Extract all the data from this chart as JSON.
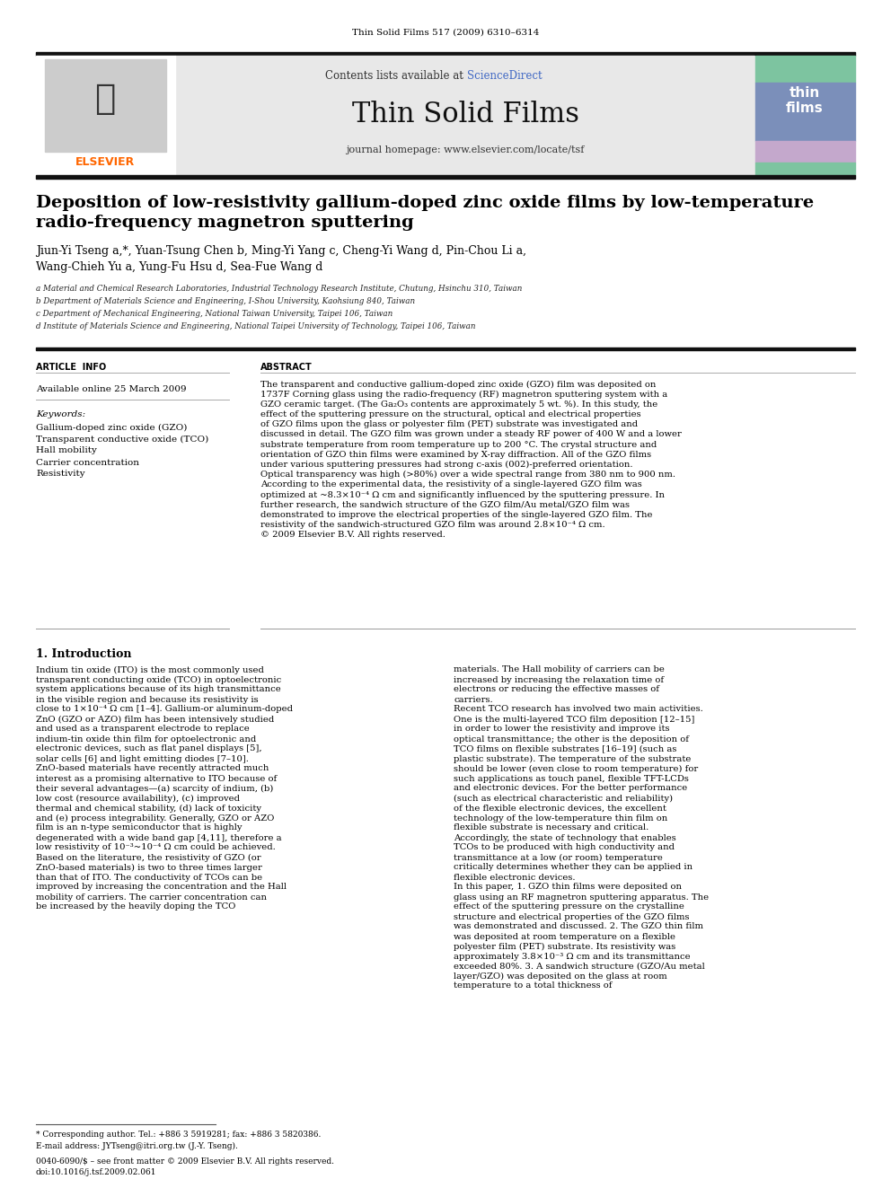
{
  "journal_header": "Thin Solid Films 517 (2009) 6310–6314",
  "contents_line": "Contents lists available at ScienceDirect",
  "journal_name": "Thin Solid Films",
  "journal_homepage": "journal homepage: www.elsevier.com/locate/tsf",
  "title_line1": "Deposition of low-resistivity gallium-doped zinc oxide films by low-temperature",
  "title_line2": "radio-frequency magnetron sputtering",
  "authors": "Jiun-Yi Tseng a,*, Yuan-Tsung Chen b, Ming-Yi Yang c, Cheng-Yi Wang d, Pin-Chou Li a,",
  "authors2": "Wang-Chieh Yu a, Yung-Fu Hsu d, Sea-Fue Wang d",
  "affil_a": "a Material and Chemical Research Laboratories, Industrial Technology Research Institute, Chutung, Hsinchu 310, Taiwan",
  "affil_b": "b Department of Materials Science and Engineering, I-Shou University, Kaohsiung 840, Taiwan",
  "affil_c": "c Department of Mechanical Engineering, National Taiwan University, Taipei 106, Taiwan",
  "affil_d": "d Institute of Materials Science and Engineering, National Taipei University of Technology, Taipei 106, Taiwan",
  "article_info_title": "ARTICLE  INFO",
  "available_online": "Available online 25 March 2009",
  "keywords_title": "Keywords:",
  "keywords": [
    "Gallium-doped zinc oxide (GZO)",
    "Transparent conductive oxide (TCO)",
    "Hall mobility",
    "Carrier concentration",
    "Resistivity"
  ],
  "abstract_title": "ABSTRACT",
  "abstract_text": "The transparent and conductive gallium-doped zinc oxide (GZO) film was deposited on 1737F Corning glass using the radio-frequency (RF) magnetron sputtering system with a GZO ceramic target. (The Ga₂O₃ contents are approximately 5 wt. %). In this study, the effect of the sputtering pressure on the structural, optical and electrical properties of GZO films upon the glass or polyester film (PET) substrate was investigated and discussed in detail. The GZO film was grown under a steady RF power of 400 W and a lower substrate temperature from room temperature up to 200 °C. The crystal structure and orientation of GZO thin films were examined by X-ray diffraction. All of the GZO films under various sputtering pressures had strong c-axis (002)-preferred orientation. Optical transparency was high (>80%) over a wide spectral range from 380 nm to 900 nm. According to the experimental data, the resistivity of a single-layered GZO film was optimized at ~8.3×10⁻⁴ Ω cm and significantly influenced by the sputtering pressure. In further research, the sandwich structure of the GZO film/Au metal/GZO film was demonstrated to improve the electrical properties of the single-layered GZO film. The resistivity of the sandwich-structured GZO film was around 2.8×10⁻⁴ Ω cm.\n© 2009 Elsevier B.V. All rights reserved.",
  "intro_title": "1. Introduction",
  "intro_col1_text": "    Indium tin oxide (ITO) is the most commonly used transparent conducting oxide (TCO) in optoelectronic system applications because of its high transmittance in the visible region and because its resistivity is close to 1×10⁻⁴ Ω cm [1–4]. Gallium-or aluminum-doped ZnO (GZO or AZO) film has been intensively studied and used as a transparent electrode to replace indium-tin oxide thin film for optoelectronic and electronic devices, such as flat panel displays [5], solar cells [6] and light emitting diodes [7–10]. ZnO-based materials have recently attracted much interest as a promising alternative to ITO because of their several advantages—(a) scarcity of indium, (b) low cost (resource availability), (c) improved thermal and chemical stability, (d) lack of toxicity and (e) process integrability. Generally, GZO or AZO film is an n-type semiconductor that is highly degenerated with a wide band gap [4,11], therefore a low resistivity of 10⁻³~10⁻⁴ Ω cm could be achieved. Based on the literature, the resistivity of GZO (or ZnO-based materials) is two to three times larger than that of ITO. The conductivity of TCOs can be improved by increasing the concentration and the Hall mobility of carriers. The carrier concentration can be increased by the heavily doping the TCO",
  "intro_col2_text": "materials. The Hall mobility of carriers can be increased by increasing the relaxation time of electrons or reducing the effective masses of carriers.\n    Recent TCO research has involved two main activities. One is the multi-layered TCO film deposition [12–15] in order to lower the resistivity and improve its optical transmittance; the other is the deposition of TCO films on flexible substrates [16–19] (such as plastic substrate). The temperature of the substrate should be lower (even close to room temperature) for such applications as touch panel, flexible TFT-LCDs and electronic devices. For the better performance (such as electrical characteristic and reliability) of the flexible electronic devices, the excellent technology of the low-temperature thin film on flexible substrate is necessary and critical. Accordingly, the state of technology that enables TCOs to be produced with high conductivity and transmittance at a low (or room) temperature critically determines whether they can be applied in flexible electronic devices.\n    In this paper, 1. GZO thin films were deposited on glass using an RF magnetron sputtering apparatus. The effect of the sputtering pressure on the crystalline structure and electrical properties of the GZO films was demonstrated and discussed. 2. The GZO thin film was deposited at room temperature on a flexible polyester film (PET) substrate. Its resistivity was approximately 3.8×10⁻³ Ω cm and its transmittance exceeded 80%. 3. A sandwich structure (GZO/Au metal layer/GZO) was deposited on the glass at room temperature to a total thickness of",
  "footnote1": "* Corresponding author. Tel.: +886 3 5919281; fax: +886 3 5820386.",
  "footnote2": "E-mail address: JYTseng@itri.org.tw (J.-Y. Tseng).",
  "footer_line1": "0040-6090/$ – see front matter © 2009 Elsevier B.V. All rights reserved.",
  "footer_line2": "doi:10.1016/j.tsf.2009.02.061",
  "bg_color": "#ffffff",
  "text_color": "#000000",
  "link_color": "#4169c4",
  "header_bg": "#e8e8e8",
  "cover_green": "#7dc4a0",
  "cover_blue": "#7b8fba",
  "cover_purple": "#c4a8cc"
}
